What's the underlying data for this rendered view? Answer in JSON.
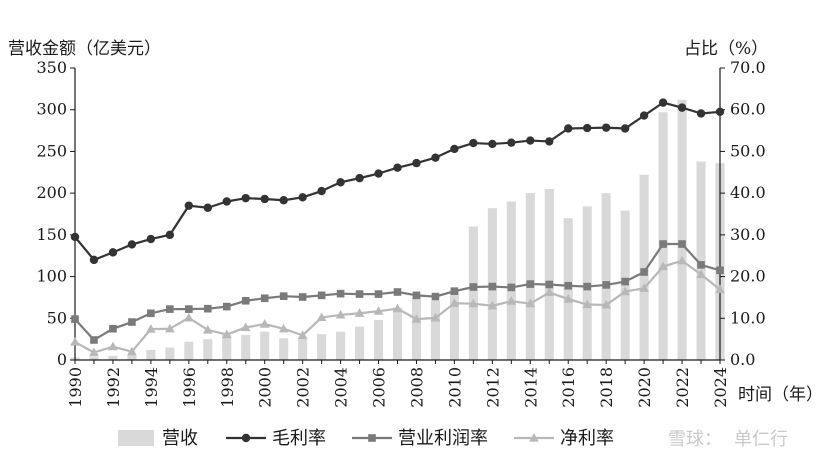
{
  "chart_data": {
    "type": "bar+line",
    "title": "",
    "left_axis_title": "营收金额（亿美元）",
    "right_axis_title": "占比（%）",
    "x_axis_title": "时间（年）",
    "years": [
      1990,
      1991,
      1992,
      1993,
      1994,
      1995,
      1996,
      1997,
      1998,
      1999,
      2000,
      2001,
      2002,
      2003,
      2004,
      2005,
      2006,
      2007,
      2008,
      2009,
      2010,
      2011,
      2012,
      2013,
      2014,
      2015,
      2016,
      2017,
      2018,
      2019,
      2020,
      2021,
      2022,
      2023,
      2024
    ],
    "x_tick_labels": [
      "1990",
      "1992",
      "1994",
      "1996",
      "1998",
      "2000",
      "2002",
      "2004",
      "2006",
      "2008",
      "2010",
      "2012",
      "2014",
      "2016",
      "2018",
      "2020",
      "2022",
      "2024"
    ],
    "y_left": {
      "min": 0,
      "max": 350,
      "ticks": [
        "0",
        "50",
        "100",
        "150",
        "200",
        "250",
        "300",
        "350"
      ]
    },
    "y_right": {
      "min": 0,
      "max": 70,
      "ticks": [
        "0.0",
        "10.0",
        "20.0",
        "30.0",
        "40.0",
        "50.0",
        "60.0",
        "70.0"
      ]
    },
    "series": [
      {
        "name": "营收",
        "kind": "bar",
        "axis": "left",
        "color": "#d9d9d9",
        "values": [
          3,
          4,
          5,
          6,
          12,
          15,
          22,
          25,
          30,
          30,
          34,
          26,
          27,
          31,
          34,
          40,
          48,
          63,
          76,
          71,
          84,
          160,
          182,
          190,
          200,
          205,
          170,
          184,
          200,
          179,
          222,
          297,
          312,
          238,
          236
        ]
      },
      {
        "name": "毛利率",
        "kind": "line",
        "axis": "right",
        "color": "#333333",
        "marker": "circle",
        "values": [
          29.5,
          24,
          25.8,
          27.7,
          29,
          30,
          37,
          36.5,
          38,
          38.8,
          38.6,
          38.3,
          39,
          40.5,
          42.6,
          43.6,
          44.7,
          46.1,
          47.2,
          48.5,
          50.6,
          52,
          51.8,
          52.1,
          52.6,
          52.4,
          55.5,
          55.6,
          55.7,
          55.5,
          58.6,
          61.7,
          60.5,
          59.1,
          59.5
        ]
      },
      {
        "name": "营业利润率",
        "kind": "line",
        "axis": "right",
        "color": "#7a7a7a",
        "marker": "square",
        "values": [
          9.8,
          4.8,
          7.5,
          9.1,
          11.2,
          12.2,
          12.2,
          12.3,
          12.8,
          14.2,
          14.8,
          15.3,
          15.1,
          15.5,
          15.9,
          15.8,
          15.8,
          16.3,
          15.5,
          15.2,
          16.5,
          17.5,
          17.6,
          17.4,
          18.2,
          18.1,
          17.8,
          17.6,
          18,
          18.8,
          21.1,
          27.8,
          27.8,
          22.8,
          21.5
        ]
      },
      {
        "name": "净利率",
        "kind": "line",
        "axis": "right",
        "color": "#b8b8b8",
        "marker": "triangle",
        "values": [
          4.3,
          1.8,
          3.2,
          2,
          7.4,
          7.5,
          10.1,
          7.2,
          6.1,
          7.8,
          8.6,
          7.5,
          5.9,
          10.2,
          10.8,
          11.2,
          11.7,
          12.3,
          9.8,
          10.1,
          13.6,
          13.5,
          13,
          14.1,
          13.5,
          16.2,
          14.6,
          13.3,
          13.2,
          16.4,
          17.2,
          22.4,
          23.8,
          20.5,
          16.9
        ]
      }
    ],
    "legend": {
      "position": "bottom"
    }
  },
  "watermark": {
    "prefix": "雪球：",
    "name": "单仁行"
  }
}
